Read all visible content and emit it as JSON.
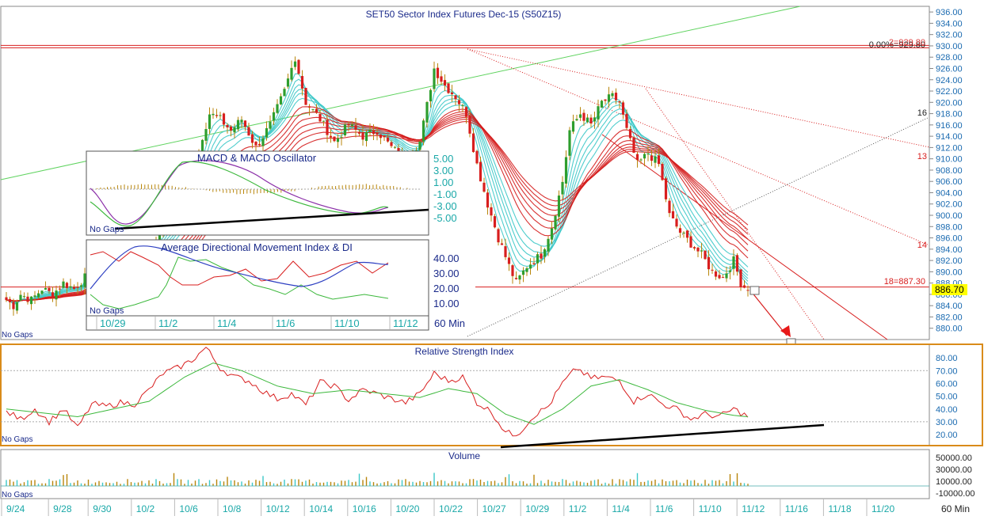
{
  "chart_data": {
    "type": "candlestick",
    "title": "SET50 Sector Index Futures Dec-15 (S50Z15)",
    "timeframe_label": "60 Min",
    "no_gaps_label": "No Gaps",
    "price_axis": {
      "min": 878,
      "max": 937,
      "ticks": [
        "936.00",
        "934.00",
        "932.00",
        "930.00",
        "928.00",
        "926.00",
        "924.00",
        "922.00",
        "920.00",
        "918.00",
        "916.00",
        "914.00",
        "912.00",
        "910.00",
        "908.00",
        "906.00",
        "904.00",
        "902.00",
        "900.00",
        "898.00",
        "896.00",
        "894.00",
        "892.00",
        "890.00",
        "888.00",
        "886.00",
        "884.00",
        "882.00",
        "880.00"
      ]
    },
    "last_price": "886.70",
    "annotations": {
      "fib_top": "0.00%=929.80",
      "fib_top_overlay": "2=929.80",
      "fib_low": "18=887.30",
      "fan_labels": [
        "16",
        "13",
        "14"
      ]
    },
    "price_anchors": [
      {
        "x": 0,
        "y": 885
      },
      {
        "x": 2,
        "y": 884
      },
      {
        "x": 4,
        "y": 886
      },
      {
        "x": 7,
        "y": 885
      },
      {
        "x": 10,
        "y": 887
      },
      {
        "x": 13,
        "y": 886
      },
      {
        "x": 16,
        "y": 888
      },
      {
        "x": 19,
        "y": 887
      },
      {
        "x": 22,
        "y": 889
      },
      {
        "x": 26,
        "y": 887
      },
      {
        "x": 30,
        "y": 890
      },
      {
        "x": 35,
        "y": 892
      },
      {
        "x": 40,
        "y": 894
      },
      {
        "x": 46,
        "y": 899
      },
      {
        "x": 52,
        "y": 906
      },
      {
        "x": 55,
        "y": 914
      },
      {
        "x": 57,
        "y": 918
      },
      {
        "x": 60,
        "y": 917
      },
      {
        "x": 63,
        "y": 915
      },
      {
        "x": 66,
        "y": 917
      },
      {
        "x": 70,
        "y": 912
      },
      {
        "x": 74,
        "y": 916
      },
      {
        "x": 78,
        "y": 922
      },
      {
        "x": 81,
        "y": 928
      },
      {
        "x": 84,
        "y": 920
      },
      {
        "x": 88,
        "y": 917
      },
      {
        "x": 92,
        "y": 913
      },
      {
        "x": 96,
        "y": 916
      },
      {
        "x": 100,
        "y": 914
      },
      {
        "x": 104,
        "y": 915
      },
      {
        "x": 108,
        "y": 912
      },
      {
        "x": 112,
        "y": 910
      },
      {
        "x": 116,
        "y": 913
      },
      {
        "x": 120,
        "y": 926
      },
      {
        "x": 123,
        "y": 923
      },
      {
        "x": 126,
        "y": 921
      },
      {
        "x": 129,
        "y": 918
      },
      {
        "x": 132,
        "y": 909
      },
      {
        "x": 135,
        "y": 902
      },
      {
        "x": 138,
        "y": 896
      },
      {
        "x": 141,
        "y": 891
      },
      {
        "x": 143,
        "y": 888
      },
      {
        "x": 146,
        "y": 891
      },
      {
        "x": 150,
        "y": 893
      },
      {
        "x": 153,
        "y": 898
      },
      {
        "x": 156,
        "y": 906
      },
      {
        "x": 158,
        "y": 915
      },
      {
        "x": 161,
        "y": 918
      },
      {
        "x": 164,
        "y": 916
      },
      {
        "x": 167,
        "y": 920
      },
      {
        "x": 170,
        "y": 921
      },
      {
        "x": 172,
        "y": 920
      },
      {
        "x": 174,
        "y": 915
      },
      {
        "x": 177,
        "y": 909
      },
      {
        "x": 180,
        "y": 911
      },
      {
        "x": 183,
        "y": 909
      },
      {
        "x": 186,
        "y": 900
      },
      {
        "x": 189,
        "y": 897
      },
      {
        "x": 192,
        "y": 895
      },
      {
        "x": 195,
        "y": 893
      },
      {
        "x": 198,
        "y": 890
      },
      {
        "x": 201,
        "y": 889
      },
      {
        "x": 204,
        "y": 892
      },
      {
        "x": 206,
        "y": 888
      },
      {
        "x": 208,
        "y": 886.7
      }
    ],
    "date_axis": {
      "labels": [
        {
          "text": "9/24",
          "bar": 0
        },
        {
          "text": "9/28",
          "bar": 13
        },
        {
          "text": "9/30",
          "bar": 24
        },
        {
          "text": "10/2",
          "bar": 36
        },
        {
          "text": "10/6",
          "bar": 48
        },
        {
          "text": "10/8",
          "bar": 60
        },
        {
          "text": "10/12",
          "bar": 72
        },
        {
          "text": "10/14",
          "bar": 84
        },
        {
          "text": "10/16",
          "bar": 96
        },
        {
          "text": "10/20",
          "bar": 108
        },
        {
          "text": "10/22",
          "bar": 120
        },
        {
          "text": "10/27",
          "bar": 132
        },
        {
          "text": "10/29",
          "bar": 144
        },
        {
          "text": "11/2",
          "bar": 156
        },
        {
          "text": "11/4",
          "bar": 168
        },
        {
          "text": "11/6",
          "bar": 180
        },
        {
          "text": "11/10",
          "bar": 192
        },
        {
          "text": "11/12",
          "bar": 204
        },
        {
          "text": "11/16",
          "bar": 216
        },
        {
          "text": "11/18",
          "bar": 228
        },
        {
          "text": "11/20",
          "bar": 240
        }
      ]
    },
    "rsi": {
      "title": "Relative Strength Index",
      "ticks": [
        "80.00",
        "70.00",
        "60.00",
        "50.00",
        "40.00",
        "30.00",
        "20.00"
      ],
      "anchors": [
        {
          "x": 0,
          "y": 38
        },
        {
          "x": 4,
          "y": 32
        },
        {
          "x": 8,
          "y": 40
        },
        {
          "x": 12,
          "y": 30
        },
        {
          "x": 16,
          "y": 40
        },
        {
          "x": 20,
          "y": 25
        },
        {
          "x": 24,
          "y": 44
        },
        {
          "x": 28,
          "y": 42
        },
        {
          "x": 32,
          "y": 45
        },
        {
          "x": 36,
          "y": 44
        },
        {
          "x": 40,
          "y": 55
        },
        {
          "x": 44,
          "y": 68
        },
        {
          "x": 48,
          "y": 72
        },
        {
          "x": 52,
          "y": 78
        },
        {
          "x": 56,
          "y": 88
        },
        {
          "x": 60,
          "y": 72
        },
        {
          "x": 64,
          "y": 65
        },
        {
          "x": 68,
          "y": 62
        },
        {
          "x": 72,
          "y": 54
        },
        {
          "x": 76,
          "y": 48
        },
        {
          "x": 80,
          "y": 52
        },
        {
          "x": 84,
          "y": 43
        },
        {
          "x": 88,
          "y": 61
        },
        {
          "x": 92,
          "y": 58
        },
        {
          "x": 96,
          "y": 47
        },
        {
          "x": 100,
          "y": 55
        },
        {
          "x": 104,
          "y": 52
        },
        {
          "x": 108,
          "y": 48
        },
        {
          "x": 112,
          "y": 45
        },
        {
          "x": 116,
          "y": 52
        },
        {
          "x": 120,
          "y": 68
        },
        {
          "x": 124,
          "y": 62
        },
        {
          "x": 128,
          "y": 65
        },
        {
          "x": 132,
          "y": 45
        },
        {
          "x": 136,
          "y": 38
        },
        {
          "x": 140,
          "y": 22
        },
        {
          "x": 142,
          "y": 20
        },
        {
          "x": 144,
          "y": 22
        },
        {
          "x": 148,
          "y": 35
        },
        {
          "x": 152,
          "y": 42
        },
        {
          "x": 156,
          "y": 60
        },
        {
          "x": 160,
          "y": 72
        },
        {
          "x": 164,
          "y": 64
        },
        {
          "x": 168,
          "y": 65
        },
        {
          "x": 172,
          "y": 62
        },
        {
          "x": 176,
          "y": 46
        },
        {
          "x": 180,
          "y": 52
        },
        {
          "x": 184,
          "y": 44
        },
        {
          "x": 188,
          "y": 40
        },
        {
          "x": 192,
          "y": 32
        },
        {
          "x": 196,
          "y": 36
        },
        {
          "x": 200,
          "y": 34
        },
        {
          "x": 204,
          "y": 40
        },
        {
          "x": 208,
          "y": 34
        }
      ],
      "ma_anchors": [
        {
          "x": 0,
          "y": 40
        },
        {
          "x": 10,
          "y": 37
        },
        {
          "x": 20,
          "y": 34
        },
        {
          "x": 30,
          "y": 40
        },
        {
          "x": 40,
          "y": 46
        },
        {
          "x": 50,
          "y": 65
        },
        {
          "x": 58,
          "y": 76
        },
        {
          "x": 66,
          "y": 70
        },
        {
          "x": 76,
          "y": 58
        },
        {
          "x": 86,
          "y": 52
        },
        {
          "x": 96,
          "y": 55
        },
        {
          "x": 106,
          "y": 52
        },
        {
          "x": 116,
          "y": 49
        },
        {
          "x": 124,
          "y": 56
        },
        {
          "x": 132,
          "y": 52
        },
        {
          "x": 140,
          "y": 36
        },
        {
          "x": 148,
          "y": 28
        },
        {
          "x": 156,
          "y": 40
        },
        {
          "x": 164,
          "y": 58
        },
        {
          "x": 172,
          "y": 63
        },
        {
          "x": 180,
          "y": 55
        },
        {
          "x": 188,
          "y": 45
        },
        {
          "x": 196,
          "y": 39
        },
        {
          "x": 204,
          "y": 35
        },
        {
          "x": 208,
          "y": 34
        }
      ]
    },
    "volume": {
      "title": "Volume",
      "ticks": [
        "50000.00",
        "30000.00",
        "10000.00",
        "-10000.00"
      ]
    },
    "inset_macd": {
      "title": "MACD & MACD Oscillator",
      "ticks": [
        "5.00",
        "3.00",
        "1.00",
        "-1.00",
        "-3.00",
        "-5.00"
      ]
    },
    "inset_adx": {
      "title": "Average Directional Movement Index & DI",
      "ticks": [
        "40.00",
        "30.00",
        "20.00",
        "10.00"
      ],
      "dates": [
        "10/29",
        "11/2",
        "11/4",
        "11/6",
        "11/10",
        "11/12"
      ],
      "timeframe_label": "60 Min"
    },
    "colors": {
      "bull": "#2e9e2e",
      "bear": "#d81e1e",
      "wick": "#b8860b",
      "ribbon_fast": "#3cc8c8",
      "ribbon_slow": "#d41c1c",
      "panel_border": "#d98b1a",
      "axis_text": "#1a6ab0",
      "dates_text": "#1aa8a8"
    }
  }
}
